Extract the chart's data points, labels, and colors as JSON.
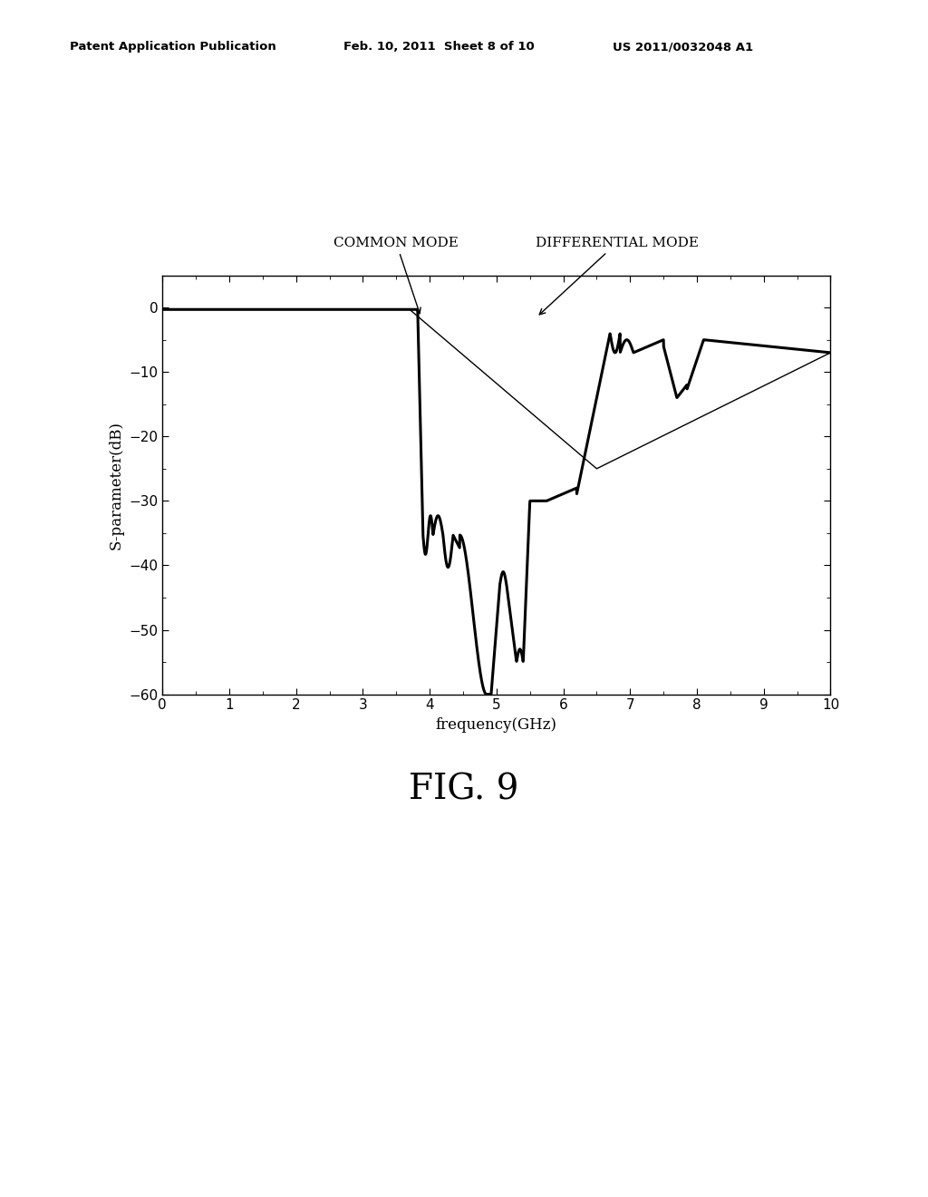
{
  "title_header": "Patent Application Publication",
  "title_date": "Feb. 10, 2011  Sheet 8 of 10",
  "title_patent": "US 2011/0032048 A1",
  "fig_label": "FIG. 9",
  "xlabel": "frequency(GHz)",
  "ylabel": "S-parameter(dB)",
  "xlim": [
    0,
    10
  ],
  "ylim": [
    -60,
    5
  ],
  "yticks": [
    0,
    -10,
    -20,
    -30,
    -40,
    -50,
    -60
  ],
  "xticks": [
    0,
    1,
    2,
    3,
    4,
    5,
    6,
    7,
    8,
    9,
    10
  ],
  "common_mode_label": "COMMON MODE",
  "differential_mode_label": "DIFFERENTIAL MODE",
  "background_color": "#ffffff",
  "line_color": "#000000"
}
